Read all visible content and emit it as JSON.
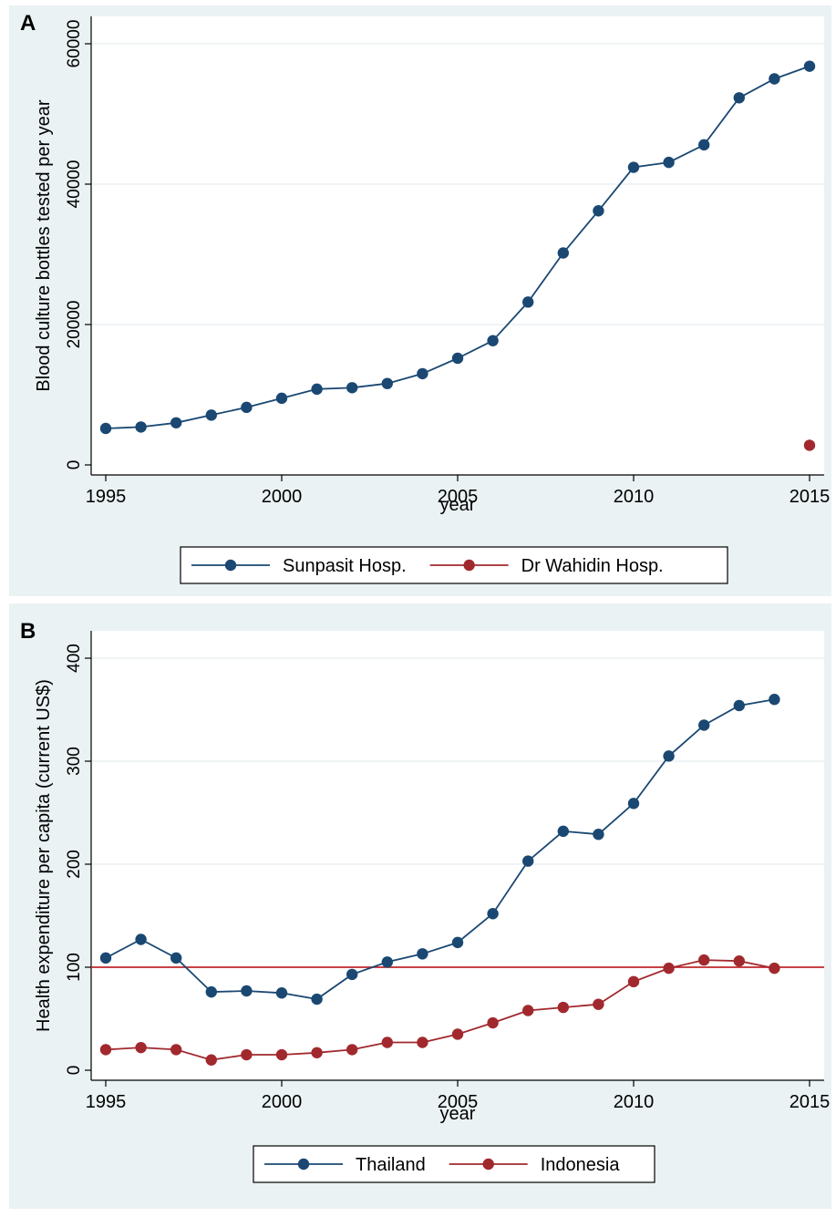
{
  "chart_data": [
    {
      "panel_label": "A",
      "type": "line",
      "xlabel": "year",
      "ylabel": "Blood culture bottles tested per year",
      "xlim": [
        1995,
        2015
      ],
      "ylim": [
        0,
        60000
      ],
      "x_ticks": [
        1995,
        2000,
        2005,
        2010,
        2015
      ],
      "y_ticks": [
        0,
        20000,
        40000,
        60000
      ],
      "grid": true,
      "legend_position": "bottom",
      "series": [
        {
          "name": "Sunpasit Hosp.",
          "color": "#1a4872",
          "x": [
            1995,
            1996,
            1997,
            1998,
            1999,
            2000,
            2001,
            2002,
            2003,
            2004,
            2005,
            2006,
            2007,
            2008,
            2009,
            2010,
            2011,
            2012,
            2013,
            2014,
            2015
          ],
          "values": [
            5200,
            5400,
            6000,
            7100,
            8200,
            9500,
            10800,
            11000,
            11600,
            13000,
            15200,
            17700,
            23200,
            30200,
            36200,
            42400,
            43100,
            45600,
            52300,
            55000,
            56800
          ]
        },
        {
          "name": "Dr Wahidin Hosp.",
          "color": "#a1292e",
          "x": [
            2015
          ],
          "values": [
            2800
          ]
        }
      ]
    },
    {
      "panel_label": "B",
      "type": "line",
      "xlabel": "year",
      "ylabel": "Health expenditure per capita (current US$)",
      "xlim": [
        1995,
        2015
      ],
      "ylim": [
        0,
        400
      ],
      "x_ticks": [
        1995,
        2000,
        2005,
        2010,
        2015
      ],
      "y_ticks": [
        0,
        100,
        200,
        300,
        400
      ],
      "grid": true,
      "reference_line_y": 100,
      "legend_position": "bottom",
      "series": [
        {
          "name": "Thailand",
          "color": "#1a4872",
          "x": [
            1995,
            1996,
            1997,
            1998,
            1999,
            2000,
            2001,
            2002,
            2003,
            2004,
            2005,
            2006,
            2007,
            2008,
            2009,
            2010,
            2011,
            2012,
            2013,
            2014
          ],
          "values": [
            109,
            127,
            109,
            76,
            77,
            75,
            69,
            93,
            105,
            113,
            124,
            152,
            203,
            232,
            229,
            259,
            305,
            335,
            354,
            360
          ]
        },
        {
          "name": "Indonesia",
          "color": "#a1292e",
          "x": [
            1995,
            1996,
            1997,
            1998,
            1999,
            2000,
            2001,
            2002,
            2003,
            2004,
            2005,
            2006,
            2007,
            2008,
            2009,
            2010,
            2011,
            2012,
            2013,
            2014
          ],
          "values": [
            20,
            22,
            20,
            10,
            15,
            15,
            17,
            20,
            27,
            27,
            35,
            46,
            58,
            61,
            64,
            86,
            99,
            107,
            106,
            99
          ]
        }
      ]
    }
  ]
}
